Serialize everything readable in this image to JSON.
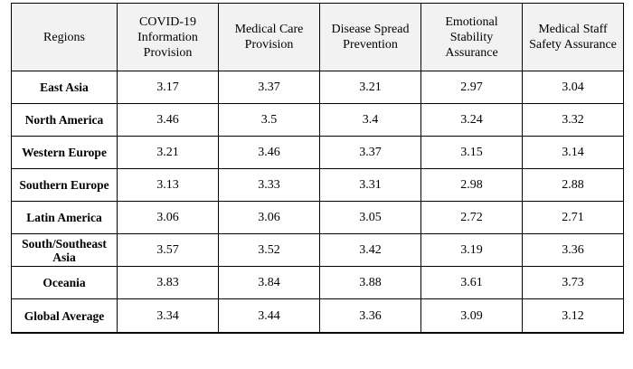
{
  "table": {
    "headers": [
      "Regions",
      "COVID-19 Information Provision",
      "Medical Care Provision",
      "Disease Spread Prevention",
      "Emotional Stability Assurance",
      "Medical Staff Safety Assurance"
    ],
    "rows": [
      {
        "region": "East Asia",
        "values": [
          "3.17",
          "3.37",
          "3.21",
          "2.97",
          "3.04"
        ]
      },
      {
        "region": "North America",
        "values": [
          "3.46",
          "3.5",
          "3.4",
          "3.24",
          "3.32"
        ]
      },
      {
        "region": "Western Europe",
        "values": [
          "3.21",
          "3.46",
          "3.37",
          "3.15",
          "3.14"
        ]
      },
      {
        "region": "Southern Europe",
        "values": [
          "3.13",
          "3.33",
          "3.31",
          "2.98",
          "2.88"
        ]
      },
      {
        "region": "Latin America",
        "values": [
          "3.06",
          "3.06",
          "3.05",
          "2.72",
          "2.71"
        ]
      },
      {
        "region": "South/Southeast Asia",
        "values": [
          "3.57",
          "3.52",
          "3.42",
          "3.19",
          "3.36"
        ]
      },
      {
        "region": "Oceania",
        "values": [
          "3.83",
          "3.84",
          "3.88",
          "3.61",
          "3.73"
        ]
      },
      {
        "region": "Global Average",
        "values": [
          "3.34",
          "3.44",
          "3.36",
          "3.09",
          "3.12"
        ]
      }
    ]
  }
}
